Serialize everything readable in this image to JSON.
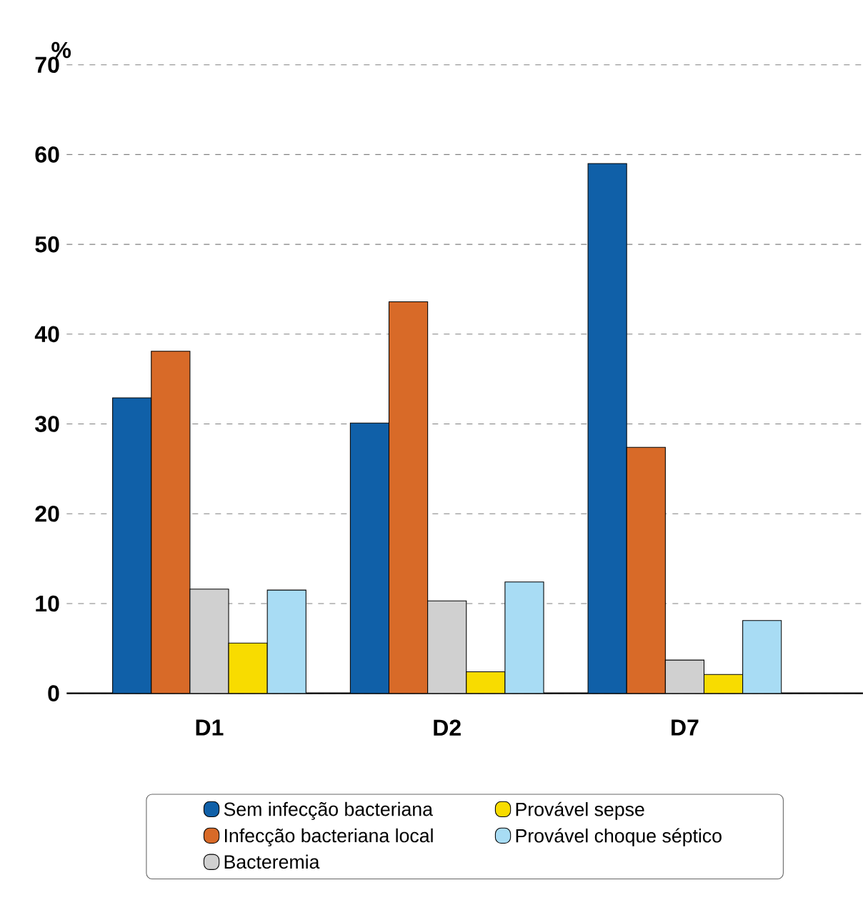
{
  "chart_data": {
    "type": "bar",
    "ylabel": "%",
    "categories": [
      "D1",
      "D2",
      "D7"
    ],
    "series": [
      {
        "name": "Sem infecção bacteriana",
        "color": "#1060a8",
        "values": [
          32.9,
          30.1,
          59.0
        ]
      },
      {
        "name": "Infecção bacteriana local",
        "color": "#d86a28",
        "values": [
          38.1,
          43.6,
          27.4
        ]
      },
      {
        "name": "Bacteremia",
        "color": "#d0d0d0",
        "values": [
          11.6,
          10.3,
          3.7
        ]
      },
      {
        "name": "Provável sepse",
        "color": "#f8dc00",
        "values": [
          5.6,
          2.4,
          2.1
        ]
      },
      {
        "name": "Provável choque séptico",
        "color": "#a8dcf4",
        "values": [
          11.5,
          12.4,
          8.1
        ]
      }
    ],
    "ylim": [
      0,
      70
    ],
    "yticks": [
      0,
      10,
      20,
      30,
      40,
      50,
      60,
      70
    ],
    "grid": "y",
    "legend": "bottom"
  }
}
